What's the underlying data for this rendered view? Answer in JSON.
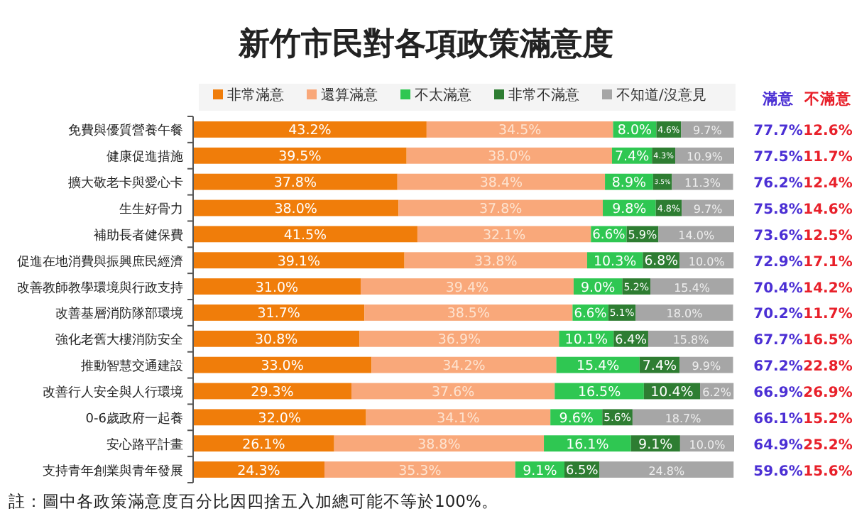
{
  "chart_data": {
    "type": "bar",
    "orientation": "horizontal",
    "stacked": true,
    "title": "新竹市民對各項政策滿意度",
    "legend": "top",
    "categories": [
      "免費與優質營養午餐",
      "健康促進措施",
      "擴大敬老卡與愛心卡",
      "生生好骨力",
      "補助長者健保費",
      "促進在地消費與振興庶民經濟",
      "改善教師教學環境與行政支持",
      "改善基層消防隊部環境",
      "強化老舊大樓消防安全",
      "推動智慧交通建設",
      "改善行人安全與人行環境",
      "0-6歲政府一起養",
      "安心路平計畫",
      "支持青年創業與青年發展"
    ],
    "series": [
      {
        "name": "非常滿意",
        "color": "#f07d0a",
        "values": [
          43.2,
          39.5,
          37.8,
          38.0,
          41.5,
          39.1,
          31.0,
          31.7,
          30.8,
          33.0,
          29.3,
          32.0,
          26.1,
          24.3
        ],
        "value_labels": [
          "43.2%",
          "39.5%",
          "37.8%",
          "38.0%",
          "41.5%",
          "39.1%",
          "31.0%",
          "31.7%",
          "30.8%",
          "33.0%",
          "29.3%",
          "32.0%",
          "26.1%",
          "24.3%"
        ]
      },
      {
        "name": "還算滿意",
        "color": "#f9a87a",
        "values": [
          34.5,
          38.0,
          38.4,
          37.8,
          32.1,
          33.8,
          39.4,
          38.5,
          36.9,
          34.2,
          37.6,
          34.1,
          38.8,
          35.3
        ],
        "value_labels": [
          "34.5%",
          "38.0%",
          "38.4%",
          "37.8%",
          "32.1%",
          "33.8%",
          "39.4%",
          "38.5%",
          "36.9%",
          "34.2%",
          "37.6%",
          "34.1%",
          "38.8%",
          "35.3%"
        ]
      },
      {
        "name": "不太滿意",
        "color": "#2fc752",
        "values": [
          8.0,
          7.4,
          8.9,
          9.8,
          6.6,
          10.3,
          9.0,
          6.6,
          10.1,
          15.4,
          16.5,
          9.6,
          16.1,
          9.1
        ],
        "value_labels": [
          "8.0%",
          "7.4%",
          "8.9%",
          "9.8%",
          "6.6%",
          "10.3%",
          "9.0%",
          "6.6%",
          "10.1%",
          "15.4%",
          "16.5%",
          "9.6%",
          "16.1%",
          "9.1%"
        ]
      },
      {
        "name": "非常不滿意",
        "color": "#2e7d32",
        "values": [
          4.6,
          4.3,
          3.5,
          4.8,
          5.9,
          6.8,
          5.2,
          5.1,
          6.4,
          7.4,
          10.4,
          5.6,
          9.1,
          6.5
        ],
        "value_labels": [
          "4.6%",
          "4.3%",
          "3.5%",
          "4.8%",
          "5.9%",
          "6.8%",
          "5.2%",
          "5.1%",
          "6.4%",
          "7.4%",
          "10.4%",
          "5.6%",
          "9.1%",
          "6.5%"
        ]
      },
      {
        "name": "不知道/沒意見",
        "color": "#a6a6a6",
        "values": [
          9.7,
          10.9,
          11.3,
          9.7,
          14.0,
          10.0,
          15.4,
          18.0,
          15.8,
          9.9,
          6.2,
          18.7,
          10.0,
          24.8
        ],
        "value_labels": [
          "9.7%",
          "10.9%",
          "11.3%",
          "9.7%",
          "14.0%",
          "10.0%",
          "15.4%",
          "18.0%",
          "15.8%",
          "9.9%",
          "6.2%",
          "18.7%",
          "10.0%",
          "24.8%"
        ]
      }
    ],
    "annotations": [
      "註：圖中各政策滿意度百分比因四捨五入加總可能不等於100%。",
      "滿意",
      "不滿意",
      "77.7%",
      "12.6%",
      "77.5%",
      "11.7%",
      "76.2%",
      "12.4%",
      "75.8%",
      "14.6%",
      "73.6%",
      "12.5%",
      "72.9%",
      "17.1%",
      "70.4%",
      "14.2%",
      "70.2%",
      "11.7%",
      "67.7%",
      "16.5%",
      "67.2%",
      "22.8%",
      "66.9%",
      "26.9%",
      "66.1%",
      "15.2%",
      "64.9%",
      "25.2%",
      "59.6%",
      "15.6%"
    ]
  }
}
